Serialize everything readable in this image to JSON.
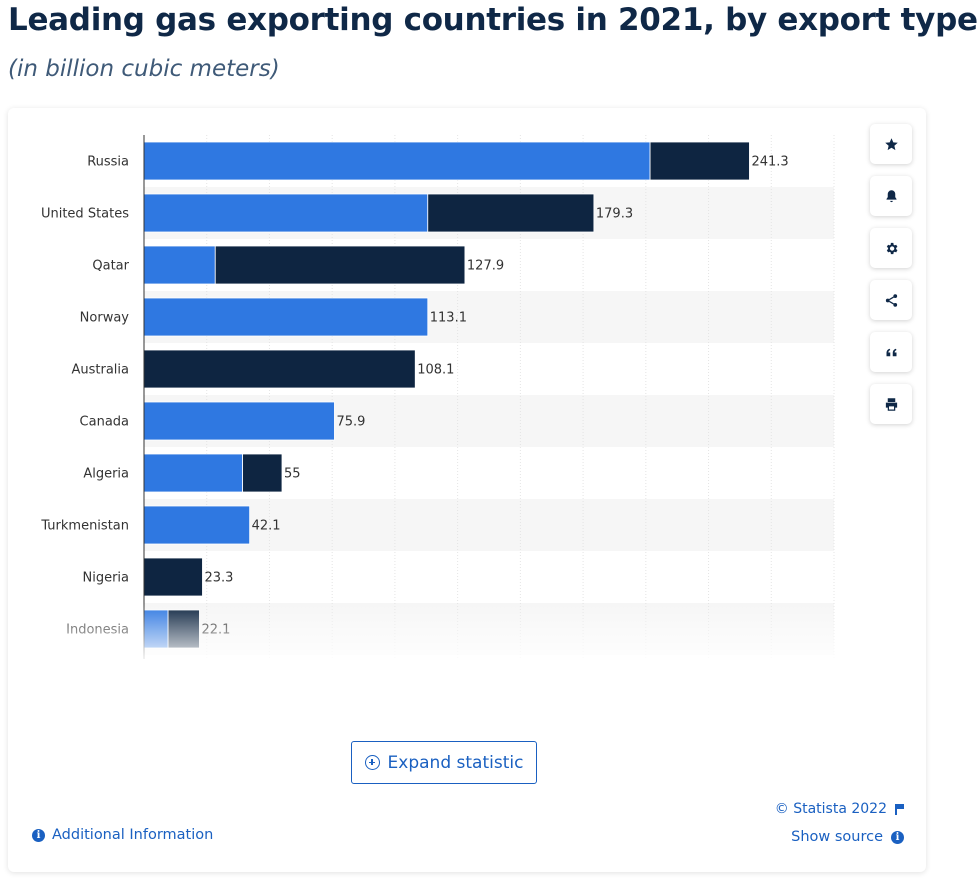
{
  "page": {
    "title": "Leading gas exporting countries in 2021, by export type",
    "subtitle": "(in billion cubic meters)"
  },
  "colors": {
    "pipeline": "#2f78e1",
    "lng": "#0e2541",
    "stripe": "#f6f6f6",
    "grid": "#e4e4e4",
    "accent": "#1a60c1"
  },
  "toolbar": {
    "buttons": [
      {
        "name": "favorite-button",
        "icon": "star-icon"
      },
      {
        "name": "notification-button",
        "icon": "bell-icon"
      },
      {
        "name": "settings-button",
        "icon": "gear-icon"
      },
      {
        "name": "share-button",
        "icon": "share-icon"
      },
      {
        "name": "cite-button",
        "icon": "quote-icon"
      },
      {
        "name": "print-button",
        "icon": "print-icon"
      }
    ]
  },
  "footer": {
    "expand_label": "Expand statistic",
    "additional_info_label": "Additional Information",
    "copyright": "© Statista 2022",
    "show_source_label": "Show source"
  },
  "chart_data": {
    "type": "bar",
    "orientation": "horizontal",
    "stacked": true,
    "categories": [
      "Russia",
      "United States",
      "Qatar",
      "Norway",
      "Australia",
      "Canada",
      "Algeria",
      "Turkmenistan",
      "Nigeria",
      "Indonesia"
    ],
    "series": [
      {
        "values": [
          201.7,
          113.1,
          28.4,
          113.1,
          0,
          75.9,
          39.3,
          42.1,
          0,
          9.6
        ],
        "color": "#2f78e1"
      },
      {
        "values": [
          39.6,
          66.2,
          99.5,
          0,
          108.1,
          0,
          15.7,
          0,
          23.3,
          12.5
        ],
        "color": "#0e2541"
      }
    ],
    "totals": [
      241.3,
      179.3,
      127.9,
      113.1,
      108.1,
      75.9,
      55,
      42.1,
      23.3,
      22.1
    ],
    "total_labels": [
      "241.3",
      "179.3",
      "127.9",
      "113.1",
      "108.1",
      "75.9",
      "55",
      "42.1",
      "23.3",
      "22.1"
    ],
    "xlim": [
      0,
      275
    ],
    "grid": true,
    "legend": "none"
  }
}
